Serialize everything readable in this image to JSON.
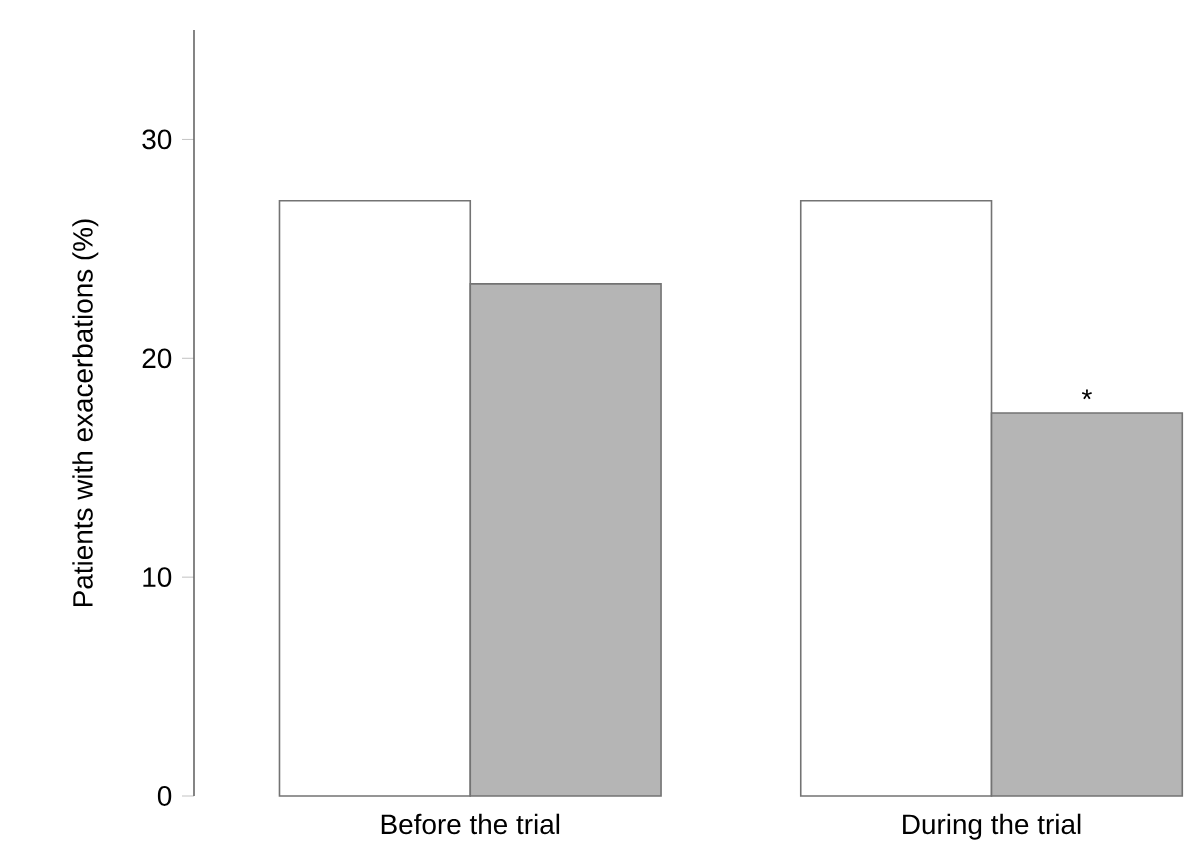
{
  "chart_data": {
    "type": "bar",
    "ylabel": "Patients with exacerbations (%)",
    "categories": [
      "Before the trial",
      "During the trial"
    ],
    "series": [
      {
        "color": "#ffffff",
        "values": [
          27.2,
          27.2
        ]
      },
      {
        "color": "#b5b5b5",
        "values": [
          23.4,
          17.5
        ]
      }
    ],
    "ylim": [
      0,
      35
    ],
    "yticks": [
      0,
      10,
      20,
      30
    ],
    "grid": false,
    "annotations": [
      "*"
    ]
  }
}
